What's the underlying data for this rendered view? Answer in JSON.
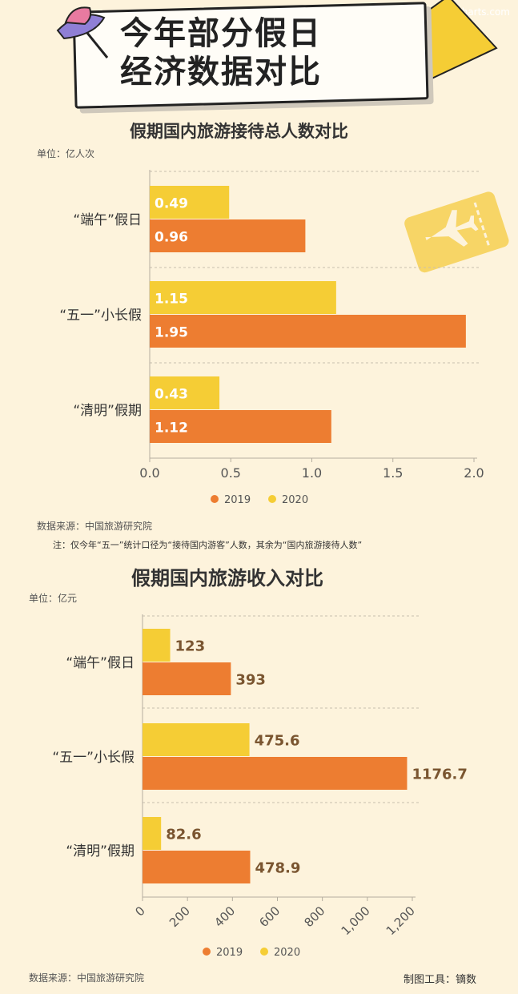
{
  "watermark": "dycharts.com",
  "title": {
    "line1": "今年部分假日",
    "line2": "经济数据对比"
  },
  "colors": {
    "y2019": "#ed7d31",
    "y2020": "#f5cd35",
    "bg": "#fdf3dc"
  },
  "icons": [
    "hat-pin-icon",
    "ticket-icon",
    "plane-icon",
    "paper-note-icon"
  ],
  "chart_data": [
    {
      "type": "bar",
      "orientation": "horizontal",
      "title": "假期国内旅游接待总人数对比",
      "unit": "单位：亿人次",
      "categories": [
        "“端午”假日",
        "“五一”小长假",
        "“清明”假期"
      ],
      "series": [
        {
          "name": "2020",
          "values": [
            0.49,
            1.15,
            0.43
          ]
        },
        {
          "name": "2019",
          "values": [
            0.96,
            1.95,
            1.12
          ]
        }
      ],
      "value_labels": [
        [
          "0.49",
          "1.15",
          "0.43"
        ],
        [
          "0.96",
          "1.95",
          "1.12"
        ]
      ],
      "xlim": [
        0,
        2.0
      ],
      "xticks": [
        "0.0",
        "0.5",
        "1.0",
        "1.5",
        "2.0"
      ],
      "legend": [
        "2019",
        "2020"
      ],
      "legend_position": "bottom",
      "source": "数据来源：中国旅游研究院",
      "note": "注：仅今年“五一”统计口径为“接待国内游客”人数，其余为“国内旅游接待人数”"
    },
    {
      "type": "bar",
      "orientation": "horizontal",
      "title": "假期国内旅游收入对比",
      "unit": "单位：亿元",
      "categories": [
        "“端午”假日",
        "“五一”小长假",
        "“清明”假期"
      ],
      "series": [
        {
          "name": "2020",
          "values": [
            123,
            475.6,
            82.6
          ]
        },
        {
          "name": "2019",
          "values": [
            393,
            1176.7,
            478.9
          ]
        }
      ],
      "value_labels": [
        [
          "123",
          "475.6",
          "82.6"
        ],
        [
          "393",
          "1176.7",
          "478.9"
        ]
      ],
      "xlim": [
        0,
        1200
      ],
      "xticks": [
        "0",
        "200",
        "400",
        "600",
        "800",
        "1,000",
        "1,200"
      ],
      "legend": [
        "2019",
        "2020"
      ],
      "legend_position": "bottom",
      "source": "数据来源：中国旅游研究院"
    }
  ],
  "footer": {
    "tool": "制图工具：镝数"
  }
}
